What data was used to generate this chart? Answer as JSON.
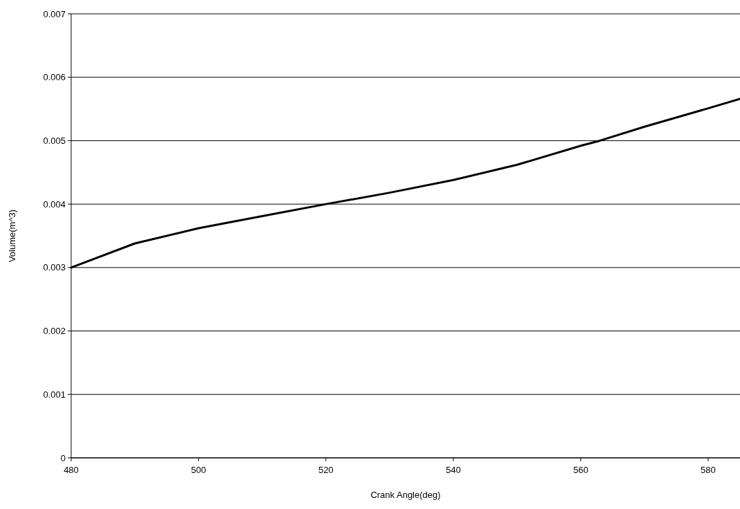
{
  "chart_data": {
    "type": "line",
    "xlabel": "Crank Angle(deg)",
    "ylabel": "Volume(m^3)",
    "series": [
      {
        "color": "#000000",
        "x": [
          480,
          490,
          500,
          510,
          520,
          530,
          540,
          550,
          560,
          563,
          570,
          580,
          585
        ],
        "values": [
          0.003,
          0.00338,
          0.00362,
          0.00381,
          0.004,
          0.00418,
          0.00438,
          0.00462,
          0.00492,
          0.005,
          0.00522,
          0.00551,
          0.00566
        ]
      }
    ],
    "xlim": [
      480,
      585
    ],
    "xticks": [
      480,
      500,
      520,
      540,
      560,
      580
    ],
    "ylim": [
      0,
      0.007
    ],
    "yticks": [
      0,
      0.001,
      0.002,
      0.003,
      0.004,
      0.005,
      0.006,
      0.007
    ],
    "grid": "y",
    "marker": "none",
    "line_style": "solid"
  }
}
